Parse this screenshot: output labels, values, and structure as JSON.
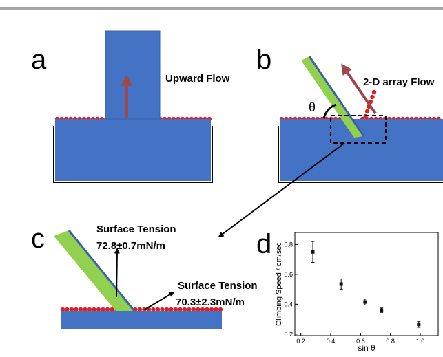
{
  "figure": {
    "panel_a": {
      "label": "a",
      "arrow_label": "Upward Flow"
    },
    "panel_b": {
      "label": "b",
      "arrow_label": "2-D array Flow",
      "angle": "θ"
    },
    "panel_c": {
      "label": "c",
      "upper_title": "Surface Tension",
      "upper_value": "72.8±0.7mN/m",
      "lower_title": "Surface Tension",
      "lower_value": "70.3±2.3mN/m"
    },
    "panel_d": {
      "label": "d"
    }
  },
  "chart_data": {
    "type": "scatter",
    "x_label": "sin θ",
    "y_label": "Climbing Speed / cm/sec",
    "series": [
      {
        "color": "#111111",
        "x": [
          0.28,
          0.47,
          0.63,
          0.74,
          0.99
        ],
        "values": [
          0.75,
          0.535,
          0.415,
          0.36,
          0.265
        ],
        "errors": [
          0.07,
          0.035,
          0.02,
          0.015,
          0.02
        ]
      }
    ],
    "xlim": [
      0.16,
      1.12
    ],
    "ylim": [
      0.19,
      0.88
    ],
    "xticks": [
      0.2,
      0.4,
      0.6,
      0.8,
      {
        "value": 1,
        "label": "1.0"
      }
    ],
    "yticks": [
      0.2,
      0.4,
      0.6,
      0.8
    ]
  }
}
